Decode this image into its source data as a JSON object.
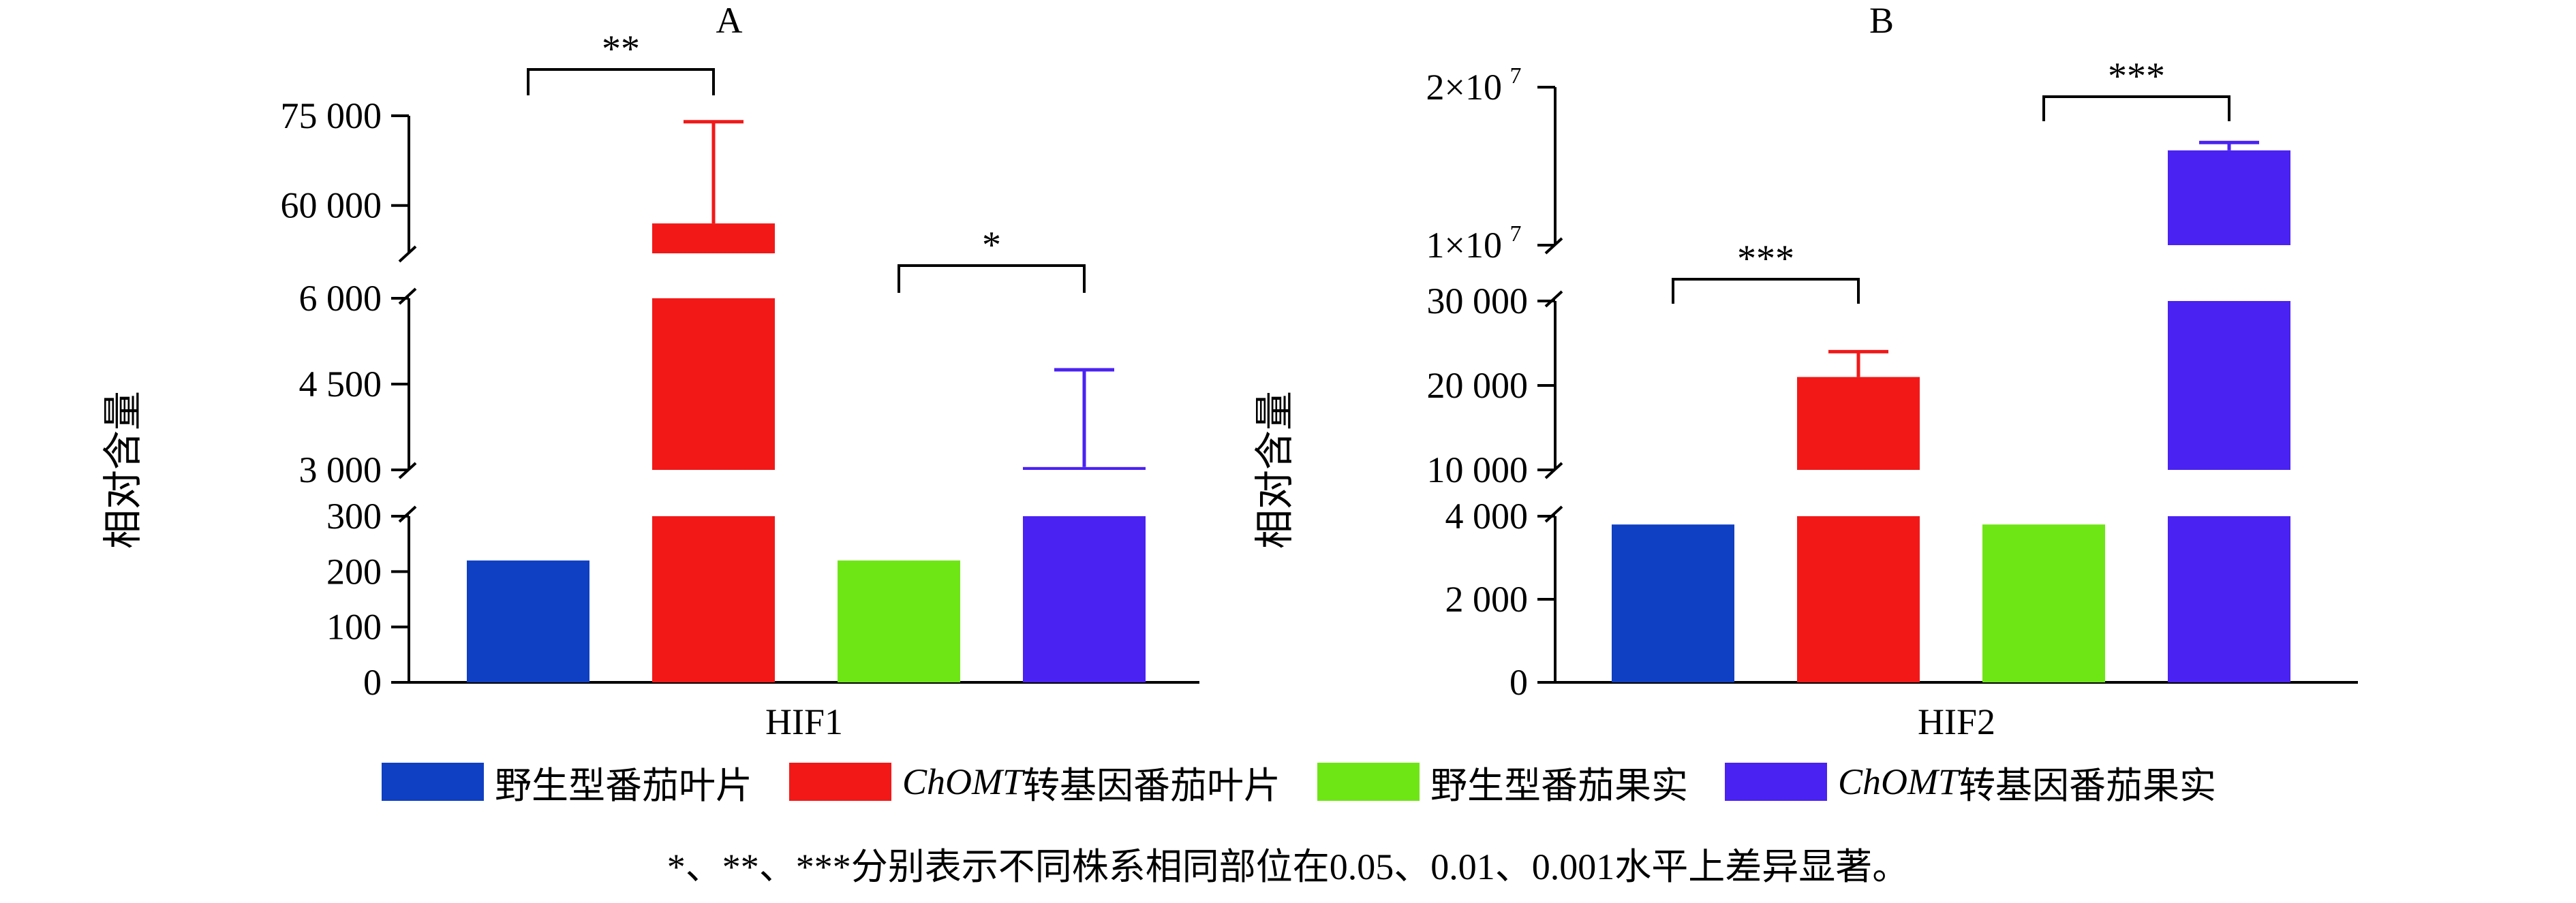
{
  "chart_data": [
    {
      "type": "bar",
      "panel_label": "A",
      "xlabel": "HIF1",
      "ylabel": "相对含量",
      "categories": [
        "野生型番茄叶片",
        "ChOMT转基因番茄叶片",
        "野生型番茄果实",
        "ChOMT转基因番茄果实"
      ],
      "values": [
        220,
        57000,
        220,
        3050
      ],
      "errors": [
        null,
        17000,
        null,
        1700
      ],
      "colors": [
        "#0f3fc2",
        "#f21818",
        "#6ee515",
        "#4a22f2"
      ],
      "broken_axis": true,
      "axis_segments": [
        {
          "range": [
            0,
            300
          ],
          "ticks": [
            0,
            100,
            200,
            300
          ],
          "tick_labels": [
            "0",
            "100",
            "200",
            "300"
          ]
        },
        {
          "range": [
            3000,
            6000
          ],
          "ticks": [
            3000,
            4500,
            6000
          ],
          "tick_labels": [
            "3 000",
            "4 500",
            "6 000"
          ]
        },
        {
          "range": [
            52000,
            75000
          ],
          "ticks": [
            60000,
            75000
          ],
          "tick_labels": [
            "60 000",
            "75 000"
          ]
        }
      ],
      "significance": [
        {
          "from": 0,
          "to": 1,
          "label": "**"
        },
        {
          "from": 2,
          "to": 3,
          "label": "*"
        }
      ]
    },
    {
      "type": "bar",
      "panel_label": "B",
      "xlabel": "HIF2",
      "ylabel": "相对含量",
      "categories": [
        "野生型番茄叶片",
        "ChOMT转基因番茄叶片",
        "野生型番茄果实",
        "ChOMT转基因番茄果实"
      ],
      "values": [
        3800,
        21000,
        3800,
        16000000
      ],
      "errors": [
        null,
        3000,
        null,
        500000
      ],
      "colors": [
        "#0f3fc2",
        "#f21818",
        "#6ee515",
        "#4a22f2"
      ],
      "broken_axis": true,
      "axis_segments": [
        {
          "range": [
            0,
            4000
          ],
          "ticks": [
            0,
            2000,
            4000
          ],
          "tick_labels": [
            "0",
            "2 000",
            "4 000"
          ]
        },
        {
          "range": [
            10000,
            30000
          ],
          "ticks": [
            10000,
            20000,
            30000
          ],
          "tick_labels": [
            "10 000",
            "20 000",
            "30 000"
          ]
        },
        {
          "range": [
            10000000,
            20000000
          ],
          "ticks": [
            10000000,
            20000000
          ],
          "tick_labels": [
            "1×10",
            "2×10"
          ],
          "tick_label_exponent": "7"
        }
      ],
      "significance": [
        {
          "from": 0,
          "to": 1,
          "label": "***"
        },
        {
          "from": 2,
          "to": 3,
          "label": "***"
        }
      ]
    }
  ],
  "legend": [
    {
      "label": "野生型番茄叶片",
      "color": "#0f3fc2"
    },
    {
      "label_italic": "ChOMT",
      "label": "转基因番茄叶片",
      "color": "#f21818"
    },
    {
      "label": "野生型番茄果实",
      "color": "#6ee515"
    },
    {
      "label_italic": "ChOMT",
      "label": "转基因番茄果实",
      "color": "#4a22f2"
    }
  ],
  "footnote": "*、**、***分别表示不同株系相同部位在0.05、0.01、0.001水平上差异显著。"
}
